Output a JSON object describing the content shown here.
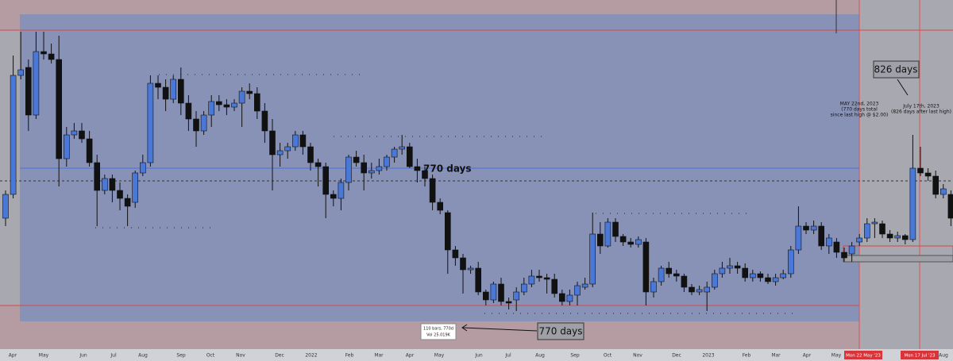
{
  "chart_data": {
    "type": "candlestick",
    "ylim": [
      0,
      2.2
    ],
    "up_color": "#4a78d8",
    "down_color": "#111111",
    "open": [
      0.825,
      0.975,
      1.725,
      1.775,
      1.475,
      1.875,
      1.86,
      1.825,
      1.2,
      1.35,
      1.375,
      1.325,
      1.175,
      1.0,
      1.075,
      1.0,
      0.95,
      0.925,
      1.11,
      1.175,
      1.675,
      1.65,
      1.575,
      1.7,
      1.55,
      1.45,
      1.375,
      1.475,
      1.56,
      1.54,
      1.525,
      1.55,
      1.625,
      1.61,
      1.5,
      1.375,
      1.225,
      1.25,
      1.275,
      1.35,
      1.275,
      1.175,
      1.15,
      0.975,
      0.95,
      1.05,
      1.21,
      1.175,
      1.11,
      1.125,
      1.15,
      1.21,
      1.26,
      1.275,
      1.15,
      1.125,
      1.075,
      0.925,
      0.86,
      0.625,
      0.575,
      0.5,
      0.51,
      0.36,
      0.31,
      0.41,
      0.3,
      0.31,
      0.36,
      0.41,
      0.46,
      0.45,
      0.44,
      0.35,
      0.3,
      0.34,
      0.39,
      0.41,
      0.725,
      0.65,
      0.8,
      0.71,
      0.675,
      0.66,
      0.675,
      0.36,
      0.425,
      0.51,
      0.475,
      0.46,
      0.39,
      0.36,
      0.36,
      0.39,
      0.475,
      0.51,
      0.525,
      0.51,
      0.45,
      0.475,
      0.45,
      0.425,
      0.45,
      0.475,
      0.625,
      0.775,
      0.75,
      0.775,
      0.65,
      0.675,
      0.61,
      0.6,
      0.675,
      0.7,
      0.79,
      0.79,
      0.725,
      0.7,
      0.715,
      0.69,
      1.14,
      1.11,
      1.09,
      0.975,
      0.975
    ],
    "high": [
      1.0,
      1.85,
      2.0,
      1.825,
      2.0,
      2.0,
      1.925,
      1.975,
      1.4,
      1.425,
      1.425,
      1.375,
      1.225,
      1.1,
      1.1,
      1.05,
      0.975,
      1.125,
      1.225,
      1.725,
      1.725,
      1.7,
      1.725,
      1.775,
      1.6,
      1.5,
      1.5,
      1.6,
      1.6,
      1.575,
      1.575,
      1.65,
      1.675,
      1.65,
      1.55,
      1.45,
      1.3,
      1.3,
      1.375,
      1.375,
      1.3,
      1.2,
      1.175,
      1.0,
      1.075,
      1.225,
      1.25,
      1.225,
      1.175,
      1.2,
      1.225,
      1.275,
      1.35,
      1.3,
      1.2,
      1.15,
      1.1,
      0.95,
      0.875,
      0.65,
      0.6,
      0.525,
      0.55,
      0.375,
      0.425,
      0.45,
      0.325,
      0.39,
      0.45,
      0.5,
      0.5,
      0.475,
      0.475,
      0.375,
      0.375,
      0.425,
      0.45,
      0.86,
      0.8,
      0.825,
      0.825,
      0.725,
      0.7,
      0.71,
      0.7,
      0.45,
      0.525,
      0.55,
      0.5,
      0.475,
      0.41,
      0.4,
      0.425,
      0.5,
      0.55,
      0.575,
      0.55,
      0.54,
      0.5,
      0.49,
      0.475,
      0.475,
      0.5,
      0.65,
      0.9,
      0.8,
      0.81,
      0.8,
      0.725,
      0.7,
      0.64,
      0.675,
      0.725,
      0.825,
      0.825,
      0.81,
      0.75,
      0.74,
      0.725,
      1.35,
      1.275,
      1.14,
      1.125,
      1.04,
      1.0
    ],
    "low": [
      0.775,
      0.95,
      1.7,
      1.375,
      1.45,
      1.825,
      1.8,
      1.025,
      1.15,
      1.325,
      1.3,
      1.15,
      0.775,
      0.975,
      0.925,
      0.875,
      0.775,
      0.89,
      1.09,
      1.15,
      1.575,
      1.5,
      1.55,
      1.475,
      1.375,
      1.275,
      1.35,
      1.4,
      1.5,
      1.475,
      1.5,
      1.4,
      1.575,
      1.45,
      1.3,
      1.0,
      1.15,
      1.2,
      1.25,
      1.225,
      1.125,
      1.025,
      0.825,
      0.9,
      0.875,
      1.0,
      1.15,
      1.0,
      1.075,
      1.1,
      1.125,
      1.175,
      1.225,
      1.14,
      1.05,
      1.025,
      0.875,
      0.85,
      0.475,
      0.525,
      0.35,
      0.475,
      0.34,
      0.275,
      0.29,
      0.275,
      0.25,
      0.24,
      0.34,
      0.39,
      0.425,
      0.35,
      0.325,
      0.275,
      0.275,
      0.275,
      0.375,
      0.39,
      0.6,
      0.64,
      0.675,
      0.65,
      0.64,
      0.64,
      0.275,
      0.325,
      0.4,
      0.45,
      0.425,
      0.36,
      0.34,
      0.34,
      0.24,
      0.375,
      0.45,
      0.475,
      0.475,
      0.425,
      0.425,
      0.425,
      0.41,
      0.4,
      0.44,
      0.45,
      0.6,
      0.725,
      0.725,
      0.625,
      0.6,
      0.575,
      0.55,
      0.55,
      0.65,
      0.675,
      0.7,
      0.7,
      0.675,
      0.675,
      0.66,
      0.675,
      1.09,
      1.06,
      0.95,
      0.95,
      0.775
    ],
    "close": [
      0.975,
      1.725,
      1.76,
      1.475,
      1.875,
      1.86,
      1.825,
      1.2,
      1.35,
      1.375,
      1.325,
      1.175,
      1.0,
      1.075,
      1.0,
      0.95,
      0.9,
      1.11,
      1.175,
      1.675,
      1.65,
      1.575,
      1.7,
      1.55,
      1.45,
      1.375,
      1.475,
      1.56,
      1.54,
      1.525,
      1.55,
      1.625,
      1.61,
      1.5,
      1.375,
      1.225,
      1.25,
      1.275,
      1.35,
      1.275,
      1.175,
      1.15,
      0.975,
      0.95,
      1.05,
      1.21,
      1.175,
      1.11,
      1.125,
      1.15,
      1.21,
      1.26,
      1.275,
      1.15,
      1.125,
      1.075,
      0.925,
      0.875,
      0.625,
      0.575,
      0.5,
      0.51,
      0.36,
      0.31,
      0.41,
      0.3,
      0.29,
      0.36,
      0.41,
      0.46,
      0.45,
      0.44,
      0.35,
      0.3,
      0.34,
      0.4,
      0.41,
      0.725,
      0.65,
      0.8,
      0.71,
      0.675,
      0.66,
      0.69,
      0.36,
      0.425,
      0.51,
      0.475,
      0.46,
      0.39,
      0.36,
      0.375,
      0.39,
      0.475,
      0.51,
      0.525,
      0.51,
      0.45,
      0.475,
      0.45,
      0.425,
      0.45,
      0.475,
      0.625,
      0.775,
      0.75,
      0.775,
      0.65,
      0.7,
      0.61,
      0.575,
      0.65,
      0.7,
      0.79,
      0.8,
      0.725,
      0.7,
      0.715,
      0.69,
      1.14,
      1.11,
      1.09,
      0.975,
      1.01,
      0.825
    ],
    "x_axis_labels": [
      "Apr",
      "May",
      "Jun",
      "Jul",
      "Aug",
      "Sep",
      "Oct",
      "Nov",
      "Dec",
      "2022",
      "Feb",
      "Mar",
      "Apr",
      "May",
      "Jun",
      "Jul",
      "Aug",
      "Sep",
      "Oct",
      "Nov",
      "Dec",
      "2023",
      "Feb",
      "Mar",
      "Apr",
      "May",
      "Aug"
    ],
    "cursor_labels": [
      "Mon 22 May '23",
      "Mon 17 Jul '23"
    ],
    "annotations": {
      "mid_label": "770 days",
      "bottom_label": "770 days",
      "measure_box": [
        "110 bars, 770d",
        "Vol 25.019K"
      ],
      "top_label": "826 days",
      "may_note": [
        "MAY 22nd, 2023",
        "(770 days total",
        "since last high @ $2.00)"
      ],
      "july_note": [
        "July 17th, 2023",
        "(826 days after last high)"
      ]
    }
  }
}
